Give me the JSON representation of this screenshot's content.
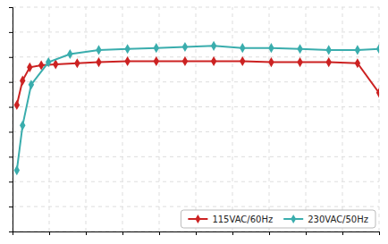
{
  "chart_data": {
    "type": "line",
    "series": [
      {
        "name": "115VAC/60Hz",
        "color": "#cc2222",
        "marker": "diamond",
        "x": [
          0.3,
          0.7,
          1.2,
          2.0,
          3.0,
          4.5,
          6.0,
          8.0,
          10.0,
          12.0,
          14.0,
          16.0,
          18.0,
          20.0,
          22.0,
          24.0,
          25.5
        ],
        "values": [
          62.0,
          74.0,
          80.5,
          81.5,
          82.0,
          82.5,
          83.0,
          83.5,
          83.5,
          83.5,
          83.5,
          83.5,
          83.0,
          83.0,
          83.0,
          82.5,
          68.0
        ]
      },
      {
        "name": "230VAC/50Hz",
        "color": "#3aadad",
        "marker": "diamond",
        "x": [
          0.3,
          0.7,
          1.3,
          2.5,
          4.0,
          6.0,
          8.0,
          10.0,
          12.0,
          14.0,
          16.0,
          18.0,
          20.0,
          22.0,
          24.0,
          25.5
        ],
        "values": [
          30.0,
          52.0,
          72.0,
          83.0,
          87.0,
          89.0,
          89.5,
          90.0,
          90.5,
          91.0,
          90.0,
          90.0,
          89.5,
          89.0,
          89.0,
          89.5
        ]
      }
    ],
    "xlim": [
      0,
      25.5
    ],
    "ylim": [
      0,
      110
    ],
    "xticks": [
      0,
      2.55,
      5.1,
      7.65,
      10.2,
      12.75,
      15.3,
      17.85,
      20.4,
      22.95,
      25.5
    ],
    "yticks": [
      0,
      12.222222222222221,
      24.444444444444443,
      36.666666666666664,
      48.888888888888886,
      61.11111111111111,
      73.33333333333333,
      85.55555555555556,
      97.77777777777777,
      110
    ],
    "grid": true,
    "tick_labels": false,
    "legend": "lower right"
  }
}
